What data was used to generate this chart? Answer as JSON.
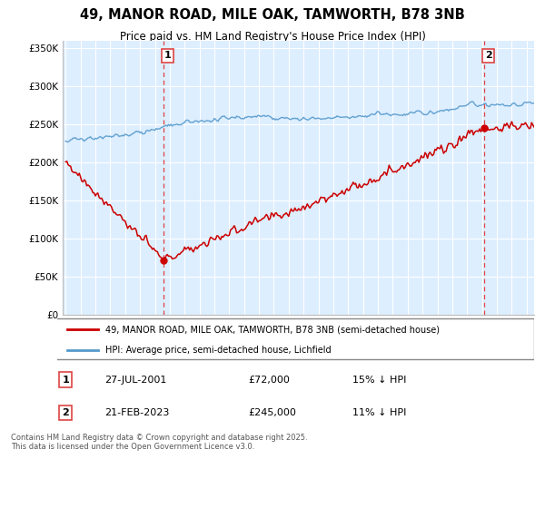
{
  "title_line1": "49, MANOR ROAD, MILE OAK, TAMWORTH, B78 3NB",
  "title_line2": "Price paid vs. HM Land Registry's House Price Index (HPI)",
  "ylim": [
    0,
    360000
  ],
  "yticks": [
    0,
    50000,
    100000,
    150000,
    200000,
    250000,
    300000,
    350000
  ],
  "ytick_labels": [
    "£0",
    "£50K",
    "£100K",
    "£150K",
    "£200K",
    "£250K",
    "£300K",
    "£350K"
  ],
  "xlim_start": 1994.8,
  "xlim_end": 2026.5,
  "plot_bg_color": "#ddeeff",
  "fig_bg_color": "#ffffff",
  "grid_color": "#ffffff",
  "sale1_date_num": 2001.57,
  "sale1_price": 72000,
  "sale1_label": "1",
  "sale1_date_str": "27-JUL-2001",
  "sale1_price_str": "£72,000",
  "sale1_hpi_str": "15% ↓ HPI",
  "sale2_date_num": 2023.13,
  "sale2_price": 245000,
  "sale2_label": "2",
  "sale2_date_str": "21-FEB-2023",
  "sale2_price_str": "£245,000",
  "sale2_hpi_str": "11% ↓ HPI",
  "red_line_color": "#cc0000",
  "blue_line_color": "#5599cc",
  "legend_label_red": "49, MANOR ROAD, MILE OAK, TAMWORTH, B78 3NB (semi-detached house)",
  "legend_label_blue": "HPI: Average price, semi-detached house, Lichfield",
  "footer_text": "Contains HM Land Registry data © Crown copyright and database right 2025.\nThis data is licensed under the Open Government Licence v3.0.",
  "dashed_line_color": "#dd4444"
}
